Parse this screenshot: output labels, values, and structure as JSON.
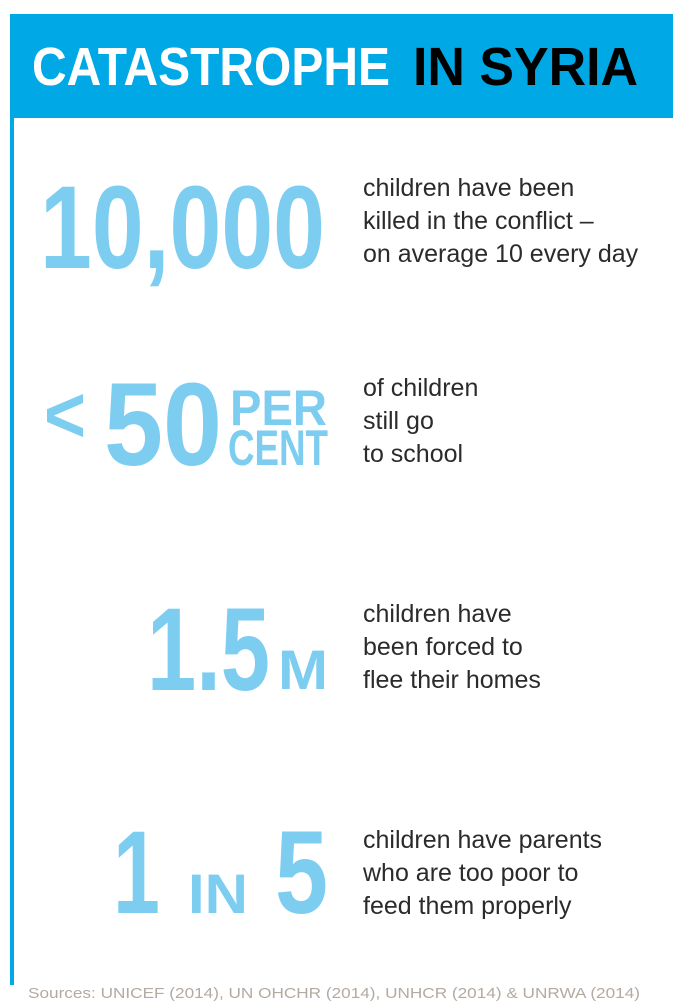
{
  "header": {
    "title": [
      "CATASTROPHE",
      "IN SYRIA"
    ]
  },
  "stats": [
    {
      "figure": [
        "10,000"
      ],
      "text": [
        "children have been",
        "killed in the conflict –",
        "on average 10 every day"
      ]
    },
    {
      "figure": [
        "<",
        "50",
        "PER",
        "CENT"
      ],
      "text": [
        "of children",
        "still go",
        "to school"
      ]
    },
    {
      "figure": [
        "1.5",
        "M"
      ],
      "text": [
        "children have",
        "been forced to",
        "flee their homes"
      ]
    },
    {
      "figure": [
        "1",
        "IN",
        "5"
      ],
      "text": [
        "children have parents",
        "who are too poor to",
        "feed them properly"
      ]
    }
  ],
  "sources": "Sources: UNICEF (2014), UN OHCHR (2014), UNHCR (2014) & UNRWA (2014)"
}
